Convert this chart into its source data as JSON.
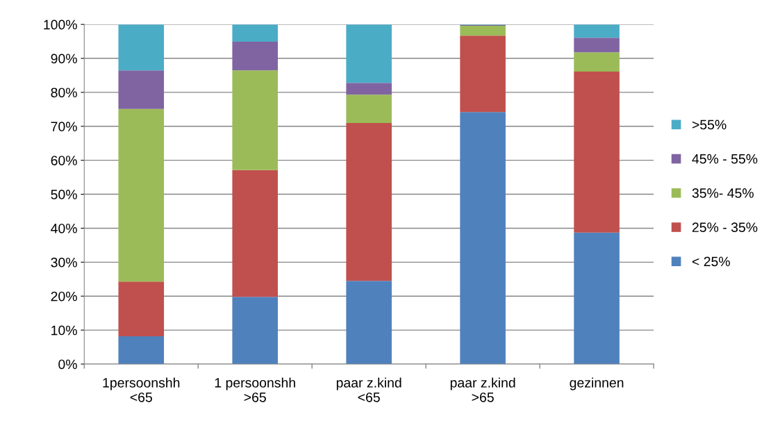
{
  "chart_data": {
    "type": "bar",
    "stacked": true,
    "categories": [
      "1persoonshh\n<65",
      "1 persoonshh\n>65",
      "paar z.kind\n<65",
      "paar z.kind\n>65",
      "gezinnen"
    ],
    "series": [
      {
        "name": "< 25%",
        "color": "#4f81bd",
        "values": [
          8.2,
          19.8,
          24.5,
          74.2,
          38.7
        ]
      },
      {
        "name": "25% - 35%",
        "color": "#c0504d",
        "values": [
          16.1,
          37.3,
          46.5,
          22.5,
          47.4
        ]
      },
      {
        "name": "35%- 45%",
        "color": "#9bbb59",
        "values": [
          50.8,
          29.4,
          8.3,
          2.9,
          5.7
        ]
      },
      {
        "name": "45% - 55%",
        "color": "#8064a2",
        "values": [
          11.4,
          8.4,
          3.5,
          0.2,
          4.3
        ]
      },
      {
        "name": ">55%",
        "color": "#4bacc6",
        "values": [
          13.5,
          5.1,
          17.2,
          0.2,
          3.9
        ]
      }
    ],
    "ylim": [
      0,
      100
    ],
    "yticks": [
      {
        "value": 0,
        "label": "0%"
      },
      {
        "value": 10,
        "label": "10%"
      },
      {
        "value": 20,
        "label": "20%"
      },
      {
        "value": 30,
        "label": "30%"
      },
      {
        "value": 40,
        "label": "40%"
      },
      {
        "value": 50,
        "label": "50%"
      },
      {
        "value": 60,
        "label": "60%"
      },
      {
        "value": 70,
        "label": "70%"
      },
      {
        "value": 80,
        "label": "80%"
      },
      {
        "value": 90,
        "label": "90%"
      },
      {
        "value": 100,
        "label": "100%"
      }
    ],
    "grid": "y",
    "legend": "right"
  }
}
